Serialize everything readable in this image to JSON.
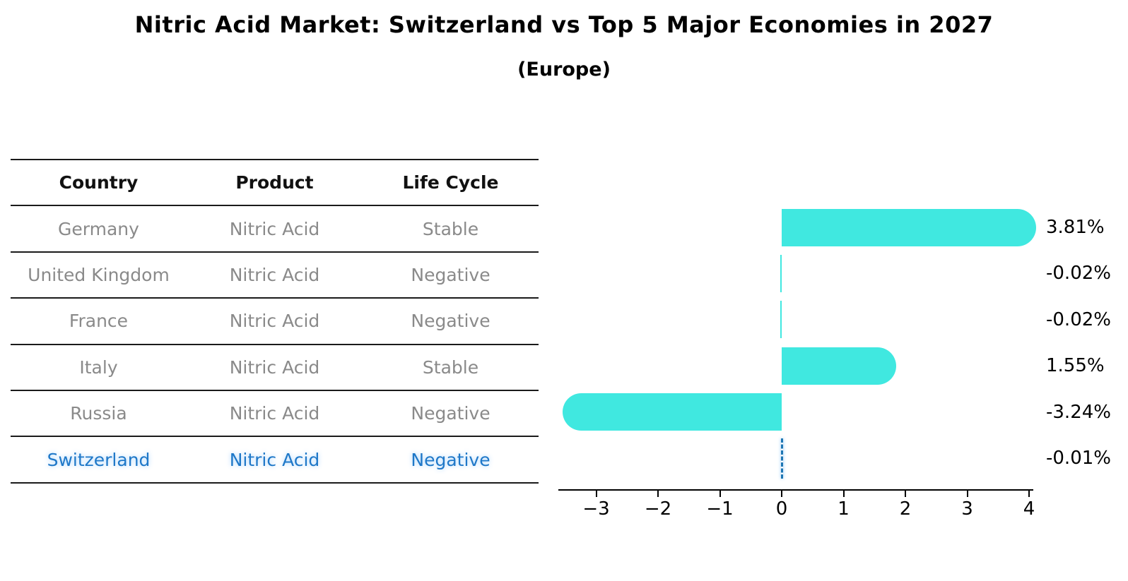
{
  "chart_data": {
    "type": "bar",
    "orientation": "horizontal",
    "title": "Nitric Acid Market: Switzerland vs Top 5 Major Economies in 2027",
    "subtitle": "(Europe)",
    "categories": [
      "Germany",
      "United Kingdom",
      "France",
      "Italy",
      "Russia",
      "Switzerland"
    ],
    "values": [
      3.81,
      -0.02,
      -0.02,
      1.55,
      -3.24,
      -0.01
    ],
    "bar_labels": [
      "3.81%",
      "-0.02%",
      "-0.02%",
      "1.55%",
      "-3.24%",
      "-0.01%"
    ],
    "xlabel": "",
    "ylabel": "",
    "xticks": [
      -3,
      -2,
      -1,
      0,
      1,
      2,
      3,
      4
    ],
    "xtick_labels": [
      "−3",
      "−2",
      "−1",
      "0",
      "1",
      "2",
      "3",
      "4"
    ],
    "xlim": [
      -3.6,
      4.1
    ],
    "grid": false,
    "legend": null,
    "bar_color": "#40E8E0",
    "highlight_index": 5,
    "highlight_color": "#1f77b4"
  },
  "table": {
    "headers": [
      "Country",
      "Product",
      "Life Cycle"
    ],
    "rows": [
      {
        "country": "Germany",
        "product": "Nitric Acid",
        "life_cycle": "Stable",
        "highlight": false
      },
      {
        "country": "United Kingdom",
        "product": "Nitric Acid",
        "life_cycle": "Negative",
        "highlight": false
      },
      {
        "country": "France",
        "product": "Nitric Acid",
        "life_cycle": "Negative",
        "highlight": false
      },
      {
        "country": "Italy",
        "product": "Nitric Acid",
        "life_cycle": "Stable",
        "highlight": false
      },
      {
        "country": "Russia",
        "product": "Nitric Acid",
        "life_cycle": "Negative",
        "highlight": true
      },
      {
        "country": "Switzerland",
        "product": "Nitric Acid",
        "life_cycle": "Negative",
        "highlight": true
      }
    ]
  },
  "colors": {
    "bar_cyan": "#40E8E0",
    "highlight_blue": "#1f77b4",
    "highlight_text_blue": "#1f78c8",
    "table_text_gray": "#8a8a8a",
    "heading_black": "#111111",
    "axis_black": "#000000"
  }
}
